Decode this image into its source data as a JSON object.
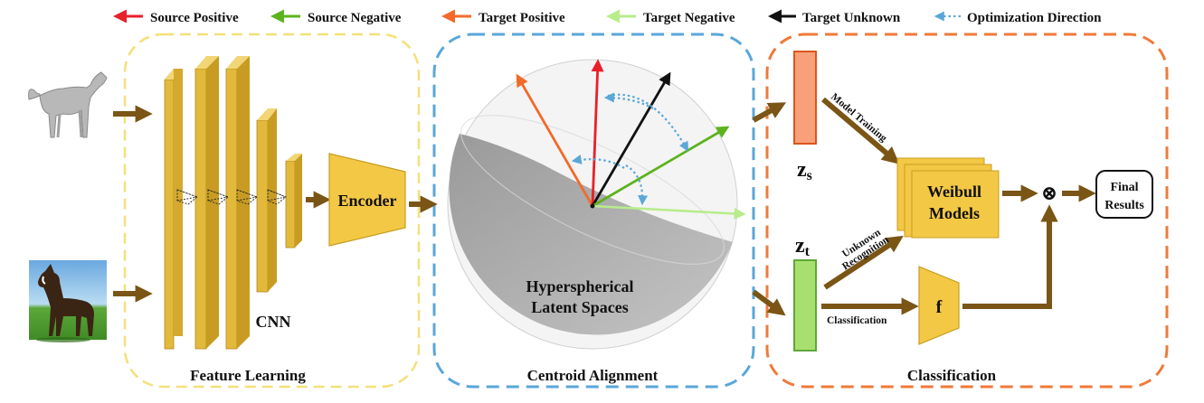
{
  "legend": {
    "source_positive": "Source Positive",
    "source_negative": "Source Negative",
    "target_positive": "Target Positive",
    "target_negative": "Target Negative",
    "target_unknown": "Target Unknown",
    "optimization_direction": "Optimization Direction"
  },
  "colors": {
    "source_positive": "#e8202a",
    "source_negative": "#5cb31e",
    "target_positive": "#f26a2a",
    "target_negative": "#b8ec8c",
    "target_unknown": "#111111",
    "optimization_direction": "#5aa7d8",
    "feature_box": "#f5e07a",
    "centroid_box": "#5aa7d8",
    "classification_box": "#f07a3a",
    "flow_arrow": "#7a5515",
    "cnn_layer": "#e2b93a",
    "encoder": "#f3c845",
    "zs_bar": "#f7a07a",
    "zt_bar": "#a8e070"
  },
  "stages": {
    "feature_learning": "Feature Learning",
    "centroid_alignment": "Centroid Alignment",
    "classification": "Classification"
  },
  "cnn_label": "CNN",
  "encoder_label": "Encoder",
  "sphere_label_line1": "Hyperspherical",
  "sphere_label_line2": "Latent Spaces",
  "zs_label": "z",
  "zs_sub": "s",
  "zt_label": "z",
  "zt_sub": "t",
  "model_training": "Model Training",
  "unknown_line1": "Unknown",
  "unknown_line2": "Recognition",
  "classification_arrow_label": "Classification",
  "weibull_line1": "Weibull",
  "weibull_line2": "Models",
  "f_label": "f",
  "otimes": "⊗",
  "final_line1": "Final",
  "final_line2": "Results"
}
